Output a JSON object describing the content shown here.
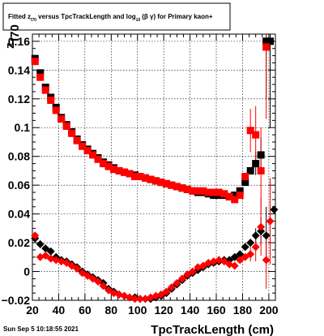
{
  "title": {
    "prefix": "Fitted  z",
    "sub1": "I70",
    "middle": "  versus TpcTrackLength and log",
    "sub2": "10",
    "suffix": "(β  γ) for Primary kaon+"
  },
  "timestamp": "Sun Sep  5 10:18:55 2021",
  "colors": {
    "series1": "#000000",
    "series2": "#ff0000",
    "grid": "#000000"
  },
  "chart_data": {
    "type": "scatter",
    "title": "Fitted z_I70 versus TpcTrackLength and log10(β γ) for Primary kaon+",
    "xlabel": "TpcTrackLength (cm)",
    "ylabel": "z_I70",
    "xlim": [
      20,
      205
    ],
    "ylim": [
      -0.02,
      0.165
    ],
    "xticks": [
      20,
      40,
      60,
      80,
      100,
      120,
      140,
      160,
      180,
      200
    ],
    "xtick_labels": [
      "20",
      "40",
      "60",
      "80",
      "100",
      "120",
      "140",
      "160",
      "180",
      "200"
    ],
    "yticks": [
      -0.02,
      0,
      0.02,
      0.04,
      0.06,
      0.08,
      0.1,
      0.12,
      0.14,
      0.16
    ],
    "ytick_labels": [
      "−0.02",
      "0",
      "0.02",
      "0.04",
      "0.06",
      "0.08",
      "0.1",
      "0.12",
      "0.14",
      "0.16"
    ],
    "grid": true,
    "series": [
      {
        "marker": "square",
        "color": "#000000",
        "points": [
          [
            22,
            0.148,
            0
          ],
          [
            26,
            0.138,
            0
          ],
          [
            30,
            0.128,
            0
          ],
          [
            34,
            0.121,
            0
          ],
          [
            38,
            0.114,
            0
          ],
          [
            42,
            0.107,
            0
          ],
          [
            46,
            0.102,
            0
          ],
          [
            50,
            0.097,
            0
          ],
          [
            54,
            0.092,
            0
          ],
          [
            58,
            0.088,
            0
          ],
          [
            62,
            0.085,
            0
          ],
          [
            66,
            0.082,
            0
          ],
          [
            70,
            0.079,
            0
          ],
          [
            74,
            0.076,
            0
          ],
          [
            78,
            0.074,
            0
          ],
          [
            82,
            0.072,
            0
          ],
          [
            86,
            0.07,
            0
          ],
          [
            90,
            0.069,
            0
          ],
          [
            94,
            0.068,
            0
          ],
          [
            98,
            0.067,
            0
          ],
          [
            102,
            0.066,
            0
          ],
          [
            106,
            0.065,
            0
          ],
          [
            110,
            0.064,
            0
          ],
          [
            114,
            0.063,
            0
          ],
          [
            118,
            0.062,
            0
          ],
          [
            122,
            0.061,
            0
          ],
          [
            126,
            0.06,
            0
          ],
          [
            130,
            0.059,
            0
          ],
          [
            134,
            0.058,
            0
          ],
          [
            138,
            0.057,
            0
          ],
          [
            142,
            0.056,
            0
          ],
          [
            146,
            0.055,
            0
          ],
          [
            150,
            0.055,
            0
          ],
          [
            154,
            0.054,
            0
          ],
          [
            158,
            0.053,
            0
          ],
          [
            162,
            0.053,
            0
          ],
          [
            166,
            0.053,
            0
          ],
          [
            170,
            0.052,
            0
          ],
          [
            174,
            0.053,
            0
          ],
          [
            178,
            0.056,
            0
          ],
          [
            182,
            0.062,
            0
          ],
          [
            186,
            0.07,
            0
          ],
          [
            190,
            0.075,
            0.008
          ],
          [
            194,
            0.081,
            0.012
          ],
          [
            198,
            0.16,
            0.04
          ],
          [
            201,
            0.16,
            0.06
          ]
        ]
      },
      {
        "marker": "square",
        "color": "#ff0000",
        "points": [
          [
            22,
            0.146,
            0
          ],
          [
            26,
            0.135,
            0
          ],
          [
            30,
            0.126,
            0
          ],
          [
            34,
            0.119,
            0
          ],
          [
            38,
            0.112,
            0
          ],
          [
            42,
            0.106,
            0
          ],
          [
            46,
            0.101,
            0
          ],
          [
            50,
            0.096,
            0
          ],
          [
            54,
            0.091,
            0
          ],
          [
            58,
            0.087,
            0
          ],
          [
            62,
            0.084,
            0
          ],
          [
            66,
            0.081,
            0
          ],
          [
            70,
            0.078,
            0
          ],
          [
            74,
            0.075,
            0
          ],
          [
            78,
            0.073,
            0
          ],
          [
            82,
            0.071,
            0
          ],
          [
            86,
            0.07,
            0
          ],
          [
            90,
            0.069,
            0
          ],
          [
            94,
            0.068,
            0
          ],
          [
            98,
            0.066,
            0
          ],
          [
            102,
            0.066,
            0
          ],
          [
            106,
            0.065,
            0
          ],
          [
            110,
            0.064,
            0
          ],
          [
            114,
            0.063,
            0
          ],
          [
            118,
            0.062,
            0
          ],
          [
            122,
            0.061,
            0
          ],
          [
            126,
            0.06,
            0
          ],
          [
            130,
            0.059,
            0
          ],
          [
            134,
            0.058,
            0
          ],
          [
            138,
            0.057,
            0
          ],
          [
            142,
            0.056,
            0
          ],
          [
            146,
            0.056,
            0
          ],
          [
            150,
            0.056,
            0
          ],
          [
            154,
            0.055,
            0
          ],
          [
            158,
            0.055,
            0
          ],
          [
            162,
            0.055,
            0
          ],
          [
            166,
            0.054,
            0
          ],
          [
            170,
            0.052,
            0
          ],
          [
            174,
            0.05,
            0
          ],
          [
            178,
            0.053,
            0
          ],
          [
            182,
            0.066,
            0
          ],
          [
            186,
            0.098,
            0.015
          ],
          [
            190,
            0.095,
            0.02
          ],
          [
            194,
            0.07,
            0.03
          ],
          [
            198,
            0.156,
            0.05
          ]
        ]
      },
      {
        "marker": "diamond",
        "color": "#000000",
        "points": [
          [
            22,
            0.023,
            0
          ],
          [
            26,
            0.019,
            0
          ],
          [
            30,
            0.016,
            0
          ],
          [
            34,
            0.014,
            0
          ],
          [
            38,
            0.01,
            0
          ],
          [
            42,
            0.008,
            0
          ],
          [
            46,
            0.007,
            0
          ],
          [
            50,
            0.005,
            0
          ],
          [
            54,
            0.003,
            0
          ],
          [
            58,
            0.0,
            0
          ],
          [
            62,
            -0.002,
            0
          ],
          [
            66,
            -0.004,
            0
          ],
          [
            70,
            -0.006,
            0
          ],
          [
            74,
            -0.008,
            0
          ],
          [
            78,
            -0.012,
            0
          ],
          [
            82,
            -0.014,
            0
          ],
          [
            86,
            -0.016,
            0
          ],
          [
            90,
            -0.017,
            0
          ],
          [
            94,
            -0.018,
            0
          ],
          [
            98,
            -0.018,
            0
          ],
          [
            102,
            -0.019,
            0
          ],
          [
            106,
            -0.019,
            0
          ],
          [
            110,
            -0.019,
            0
          ],
          [
            114,
            -0.018,
            0
          ],
          [
            118,
            -0.017,
            0
          ],
          [
            122,
            -0.015,
            0
          ],
          [
            126,
            -0.012,
            0
          ],
          [
            130,
            -0.009,
            0
          ],
          [
            134,
            -0.006,
            0
          ],
          [
            138,
            -0.003,
            0
          ],
          [
            142,
            -0.001,
            0
          ],
          [
            146,
            0.001,
            0
          ],
          [
            150,
            0.003,
            0
          ],
          [
            154,
            0.005,
            0
          ],
          [
            158,
            0.006,
            0
          ],
          [
            162,
            0.007,
            0
          ],
          [
            166,
            0.008,
            0
          ],
          [
            170,
            0.008,
            0
          ],
          [
            174,
            0.01,
            0
          ],
          [
            178,
            0.012,
            0
          ],
          [
            182,
            0.017,
            0
          ],
          [
            186,
            0.02,
            0
          ],
          [
            190,
            0.025,
            0.005
          ],
          [
            194,
            0.028,
            0.01
          ],
          [
            198,
            0.025,
            0.02
          ],
          [
            204,
            0.043,
            0
          ]
        ]
      },
      {
        "marker": "diamond",
        "color": "#ff0000",
        "points": [
          [
            22,
            0.025,
            0
          ],
          [
            26,
            0.01,
            0
          ],
          [
            30,
            0.011,
            0
          ],
          [
            34,
            0.009,
            0
          ],
          [
            38,
            0.008,
            0
          ],
          [
            42,
            0.007,
            0
          ],
          [
            46,
            0.006,
            0
          ],
          [
            50,
            0.004,
            0
          ],
          [
            54,
            0.002,
            0
          ],
          [
            58,
            -0.001,
            0
          ],
          [
            62,
            -0.003,
            0
          ],
          [
            66,
            -0.005,
            0
          ],
          [
            70,
            -0.007,
            0
          ],
          [
            74,
            -0.01,
            0
          ],
          [
            78,
            -0.013,
            0
          ],
          [
            82,
            -0.015,
            0
          ],
          [
            86,
            -0.016,
            0
          ],
          [
            90,
            -0.017,
            0
          ],
          [
            94,
            -0.018,
            0
          ],
          [
            98,
            -0.019,
            0
          ],
          [
            102,
            -0.019,
            0
          ],
          [
            106,
            -0.019,
            0
          ],
          [
            110,
            -0.018,
            0
          ],
          [
            114,
            -0.017,
            0
          ],
          [
            118,
            -0.016,
            0
          ],
          [
            122,
            -0.014,
            0
          ],
          [
            126,
            -0.011,
            0
          ],
          [
            130,
            -0.008,
            0
          ],
          [
            134,
            -0.005,
            0
          ],
          [
            138,
            -0.002,
            0
          ],
          [
            142,
            0.0,
            0
          ],
          [
            146,
            0.003,
            0
          ],
          [
            150,
            0.004,
            0
          ],
          [
            154,
            0.006,
            0
          ],
          [
            158,
            0.007,
            0
          ],
          [
            162,
            0.008,
            0
          ],
          [
            166,
            0.007,
            0
          ],
          [
            170,
            0.005,
            0
          ],
          [
            174,
            0.004,
            0
          ],
          [
            178,
            0.008,
            0
          ],
          [
            182,
            0.01,
            0
          ],
          [
            186,
            0.012,
            0.005
          ],
          [
            190,
            0.017,
            0.01
          ],
          [
            194,
            0.031,
            0.02
          ],
          [
            198,
            0.008,
            0.02
          ],
          [
            201,
            0.035,
            0.03
          ]
        ]
      }
    ]
  }
}
